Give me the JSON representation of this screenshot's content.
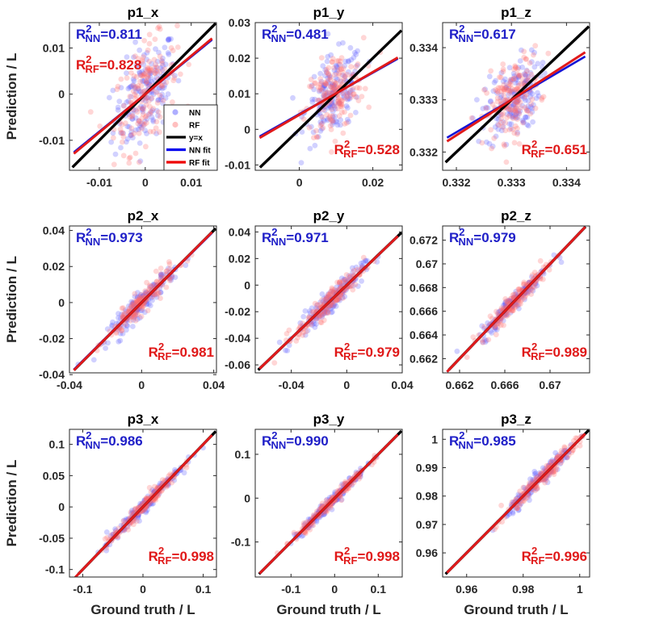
{
  "chart_data": [
    {
      "type": "scatter",
      "title": "p1_x",
      "xlim": [
        -0.0165,
        0.0155
      ],
      "ylim": [
        -0.0165,
        0.0155
      ],
      "xticks": [
        -0.01,
        0,
        0.01
      ],
      "xtick_labels": [
        "-0.01",
        "0",
        "0.01"
      ],
      "yticks": [
        -0.01,
        0,
        0.01
      ],
      "ytick_labels": [
        "-0.01",
        "0",
        "0.01"
      ],
      "ylabel": "Prediction / L",
      "xlabel": "",
      "r2_nn": "=0.811",
      "r2_rf": "=0.828",
      "r2_positions": [
        "top-left",
        "top-left"
      ],
      "nn_fit": {
        "slope": 0.81,
        "intercept": 0
      },
      "rf_fit": {
        "slope": 0.83,
        "intercept": 0
      },
      "data_center": [
        0,
        0
      ],
      "data_spread": [
        0.0062,
        0.0052
      ]
    },
    {
      "type": "scatter",
      "title": "p1_y",
      "xlim": [
        -0.012,
        0.028
      ],
      "ylim": [
        -0.0115,
        0.03
      ],
      "xticks": [
        0,
        0.02
      ],
      "xtick_labels": [
        "0",
        "0.02"
      ],
      "yticks": [
        -0.01,
        0,
        0.01,
        0.02,
        0.03
      ],
      "ytick_labels": [
        "-0.01",
        "0",
        "0.01",
        "0.02",
        "0.03"
      ],
      "ylabel": "",
      "xlabel": "",
      "r2_nn": "=0.481",
      "r2_rf": "=0.528",
      "r2_positions": [
        "top-left",
        "bottom-right"
      ],
      "nn_fit": {
        "slope": 0.58,
        "intercept": 0.0043
      },
      "rf_fit": {
        "slope": 0.6,
        "intercept": 0.0041
      },
      "data_center": [
        0.0095,
        0.0098
      ],
      "data_spread": [
        0.0072,
        0.0055
      ]
    },
    {
      "type": "scatter",
      "title": "p1_z",
      "xlim": [
        0.33175,
        0.33442
      ],
      "ylim": [
        0.33165,
        0.33448
      ],
      "xticks": [
        0.332,
        0.333,
        0.334
      ],
      "xtick_labels": [
        "0.332",
        "0.333",
        "0.334"
      ],
      "yticks": [
        0.332,
        0.333,
        0.334
      ],
      "ytick_labels": [
        "0.332",
        "0.333",
        "0.334"
      ],
      "ylabel": "",
      "xlabel": "",
      "r2_nn": "=0.617",
      "r2_rf": "=0.651",
      "r2_positions": [
        "top-left",
        "bottom-right"
      ],
      "nn_fit": {
        "slope": 0.62,
        "intercept": 0.12654
      },
      "rf_fit": {
        "slope": 0.68,
        "intercept": 0.10656
      },
      "data_center": [
        0.33302,
        0.33303
      ],
      "data_spread": [
        0.00045,
        0.00036
      ]
    },
    {
      "type": "scatter",
      "title": "p2_x",
      "xlim": [
        -0.04,
        0.0415
      ],
      "ylim": [
        -0.039,
        0.0425
      ],
      "xticks": [
        -0.04,
        0,
        0.04
      ],
      "xtick_labels": [
        "-0.04",
        "0",
        "0.04"
      ],
      "yticks": [
        -0.04,
        -0.02,
        0,
        0.02,
        0.04
      ],
      "ytick_labels": [
        "-0.04",
        "-0.02",
        "0",
        "0.02",
        "0.04"
      ],
      "ylabel": "Prediction / L",
      "xlabel": "",
      "r2_nn": "=0.973",
      "r2_rf": "=0.981",
      "r2_positions": [
        "top-left",
        "bottom-right"
      ],
      "nn_fit": {
        "slope": 0.99,
        "intercept": 0
      },
      "rf_fit": {
        "slope": 1.0,
        "intercept": 0
      },
      "data_center": [
        0,
        0
      ],
      "data_spread": [
        0.017,
        0.0032
      ]
    },
    {
      "type": "scatter",
      "title": "p2_y",
      "xlim": [
        -0.066,
        0.04
      ],
      "ylim": [
        -0.066,
        0.0445
      ],
      "xticks": [
        -0.04,
        0,
        0.04
      ],
      "xtick_labels": [
        "-0.04",
        "0",
        "0.04"
      ],
      "yticks": [
        -0.06,
        -0.04,
        -0.02,
        0,
        0.02,
        0.04
      ],
      "ytick_labels": [
        "-0.06",
        "-0.04",
        "-0.02",
        "0",
        "0.02",
        "0.04"
      ],
      "ylabel": "",
      "xlabel": "",
      "r2_nn": "=0.971",
      "r2_rf": "=0.979",
      "r2_positions": [
        "top-left",
        "bottom-right"
      ],
      "nn_fit": {
        "slope": 1.0,
        "intercept": 0
      },
      "rf_fit": {
        "slope": 1.0,
        "intercept": 0
      },
      "data_center": [
        -0.012,
        -0.012
      ],
      "data_spread": [
        0.022,
        0.0042
      ]
    },
    {
      "type": "scatter",
      "title": "p2_z",
      "xlim": [
        0.6605,
        0.6735
      ],
      "ylim": [
        0.6608,
        0.6732
      ],
      "xticks": [
        0.662,
        0.666,
        0.67
      ],
      "xtick_labels": [
        "0.662",
        "0.666",
        "0.67"
      ],
      "yticks": [
        0.662,
        0.664,
        0.666,
        0.668,
        0.67,
        0.672
      ],
      "ytick_labels": [
        "0.662",
        "0.664",
        "0.666",
        "0.668",
        "0.67",
        "0.672"
      ],
      "ylabel": "",
      "xlabel": "",
      "r2_nn": "=0.979",
      "r2_rf": "=0.989",
      "r2_positions": [
        "top-left",
        "bottom-right"
      ],
      "nn_fit": {
        "slope": 1.0,
        "intercept": 0
      },
      "rf_fit": {
        "slope": 1.0,
        "intercept": 0
      },
      "data_center": [
        0.6668,
        0.6668
      ],
      "data_spread": [
        0.0027,
        0.0004
      ]
    },
    {
      "type": "scatter",
      "title": "p3_x",
      "xlim": [
        -0.122,
        0.122
      ],
      "ylim": [
        -0.112,
        0.124
      ],
      "xticks": [
        -0.1,
        0,
        0.1
      ],
      "xtick_labels": [
        "-0.1",
        "0",
        "0.1"
      ],
      "yticks": [
        -0.1,
        -0.05,
        0,
        0.05,
        0.1
      ],
      "ytick_labels": [
        "-0.1",
        "-0.05",
        "0",
        "0.05",
        "0.1"
      ],
      "ylabel": "Prediction / L",
      "xlabel": "Ground truth / L",
      "r2_nn": "=0.986",
      "r2_rf": "=0.998",
      "r2_positions": [
        "top-left",
        "bottom-right"
      ],
      "nn_fit": {
        "slope": 1.0,
        "intercept": 0
      },
      "rf_fit": {
        "slope": 1.0,
        "intercept": 0
      },
      "data_center": [
        0,
        0
      ],
      "data_spread": [
        0.055,
        0.0055
      ]
    },
    {
      "type": "scatter",
      "title": "p3_y",
      "xlim": [
        -0.182,
        0.155
      ],
      "ylim": [
        -0.18,
        0.157
      ],
      "xticks": [
        -0.1,
        0,
        0.1
      ],
      "xtick_labels": [
        "-0.1",
        "0",
        "0.1"
      ],
      "yticks": [
        -0.1,
        0,
        0.1
      ],
      "ytick_labels": [
        "-0.1",
        "0",
        "0.1"
      ],
      "ylabel": "",
      "xlabel": "Ground truth / L",
      "r2_nn": "=0.990",
      "r2_rf": "=0.998",
      "r2_positions": [
        "top-left",
        "bottom-right"
      ],
      "nn_fit": {
        "slope": 1.0,
        "intercept": 0
      },
      "rf_fit": {
        "slope": 1.0,
        "intercept": 0
      },
      "data_center": [
        -0.01,
        -0.01
      ],
      "data_spread": [
        0.075,
        0.0065
      ]
    },
    {
      "type": "scatter",
      "title": "p3_z",
      "xlim": [
        0.9515,
        1.0035
      ],
      "ylim": [
        0.9515,
        1.0035
      ],
      "xticks": [
        0.96,
        0.98,
        1
      ],
      "xtick_labels": [
        "0.96",
        "0.98",
        "1"
      ],
      "yticks": [
        0.96,
        0.97,
        0.98,
        0.99,
        1
      ],
      "ytick_labels": [
        "0.96",
        "0.97",
        "0.98",
        "0.99",
        "1"
      ],
      "ylabel": "",
      "xlabel": "Ground truth / L",
      "r2_nn": "=0.985",
      "r2_rf": "=0.996",
      "r2_positions": [
        "top-left",
        "bottom-right"
      ],
      "nn_fit": {
        "slope": 1.0,
        "intercept": 0
      },
      "rf_fit": {
        "slope": 1.0,
        "intercept": 0
      },
      "data_center": [
        0.9865,
        0.9865
      ],
      "data_spread": [
        0.011,
        0.0014
      ]
    }
  ],
  "r2_symbol": "R",
  "r2_sup": "2",
  "r2_sub_nn": "NN",
  "r2_sub_rf": "RF",
  "legend": {
    "entries": [
      {
        "label": "NN",
        "kind": "marker",
        "color": "#6b6bff"
      },
      {
        "label": "RF",
        "kind": "marker",
        "color": "#ff8a8a"
      },
      {
        "label": "y=x",
        "kind": "line",
        "color": "#000000"
      },
      {
        "label": "NN fit",
        "kind": "line",
        "color": "#0000ee"
      },
      {
        "label": "RF fit",
        "kind": "line",
        "color": "#ee0000"
      }
    ]
  },
  "colors": {
    "nn_points": "#5a5aff",
    "rf_points": "#ff6b6b",
    "nn_fit": "#1515d6",
    "rf_fit": "#e11a1a",
    "identity": "#000000",
    "r2_nn_text": "#2020c8",
    "r2_rf_text": "#e01818"
  }
}
